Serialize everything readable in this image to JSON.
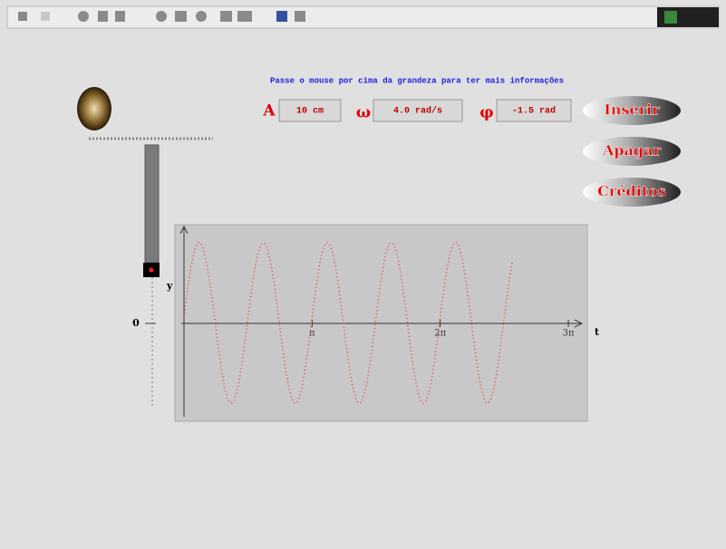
{
  "instruction": "Passe o mouse por cima da grandeza para ter mais informações",
  "parameters": [
    {
      "symbol": "A",
      "text": "10 cm",
      "value": 10
    },
    {
      "symbol": "ω",
      "text": "4.0 rad/s",
      "value": 4.0
    },
    {
      "symbol": "φ",
      "text": "-1.5 rad",
      "value": -1.5
    }
  ],
  "buttons": [
    "Inserir",
    "Apagar",
    "Créditos"
  ],
  "spring_axis": {
    "label": "y",
    "zero": "0"
  },
  "plot": {
    "x_label": "t",
    "xlim": [
      -0.22,
      9.89
    ],
    "ylim": [
      -12.25,
      12.25
    ],
    "xticks": [
      {
        "value": 3.1416,
        "label": "π"
      },
      {
        "value": 6.2832,
        "label": "2π"
      },
      {
        "value": 9.4248,
        "label": "3π"
      }
    ],
    "t_range": [
      0,
      8.05
    ]
  }
}
